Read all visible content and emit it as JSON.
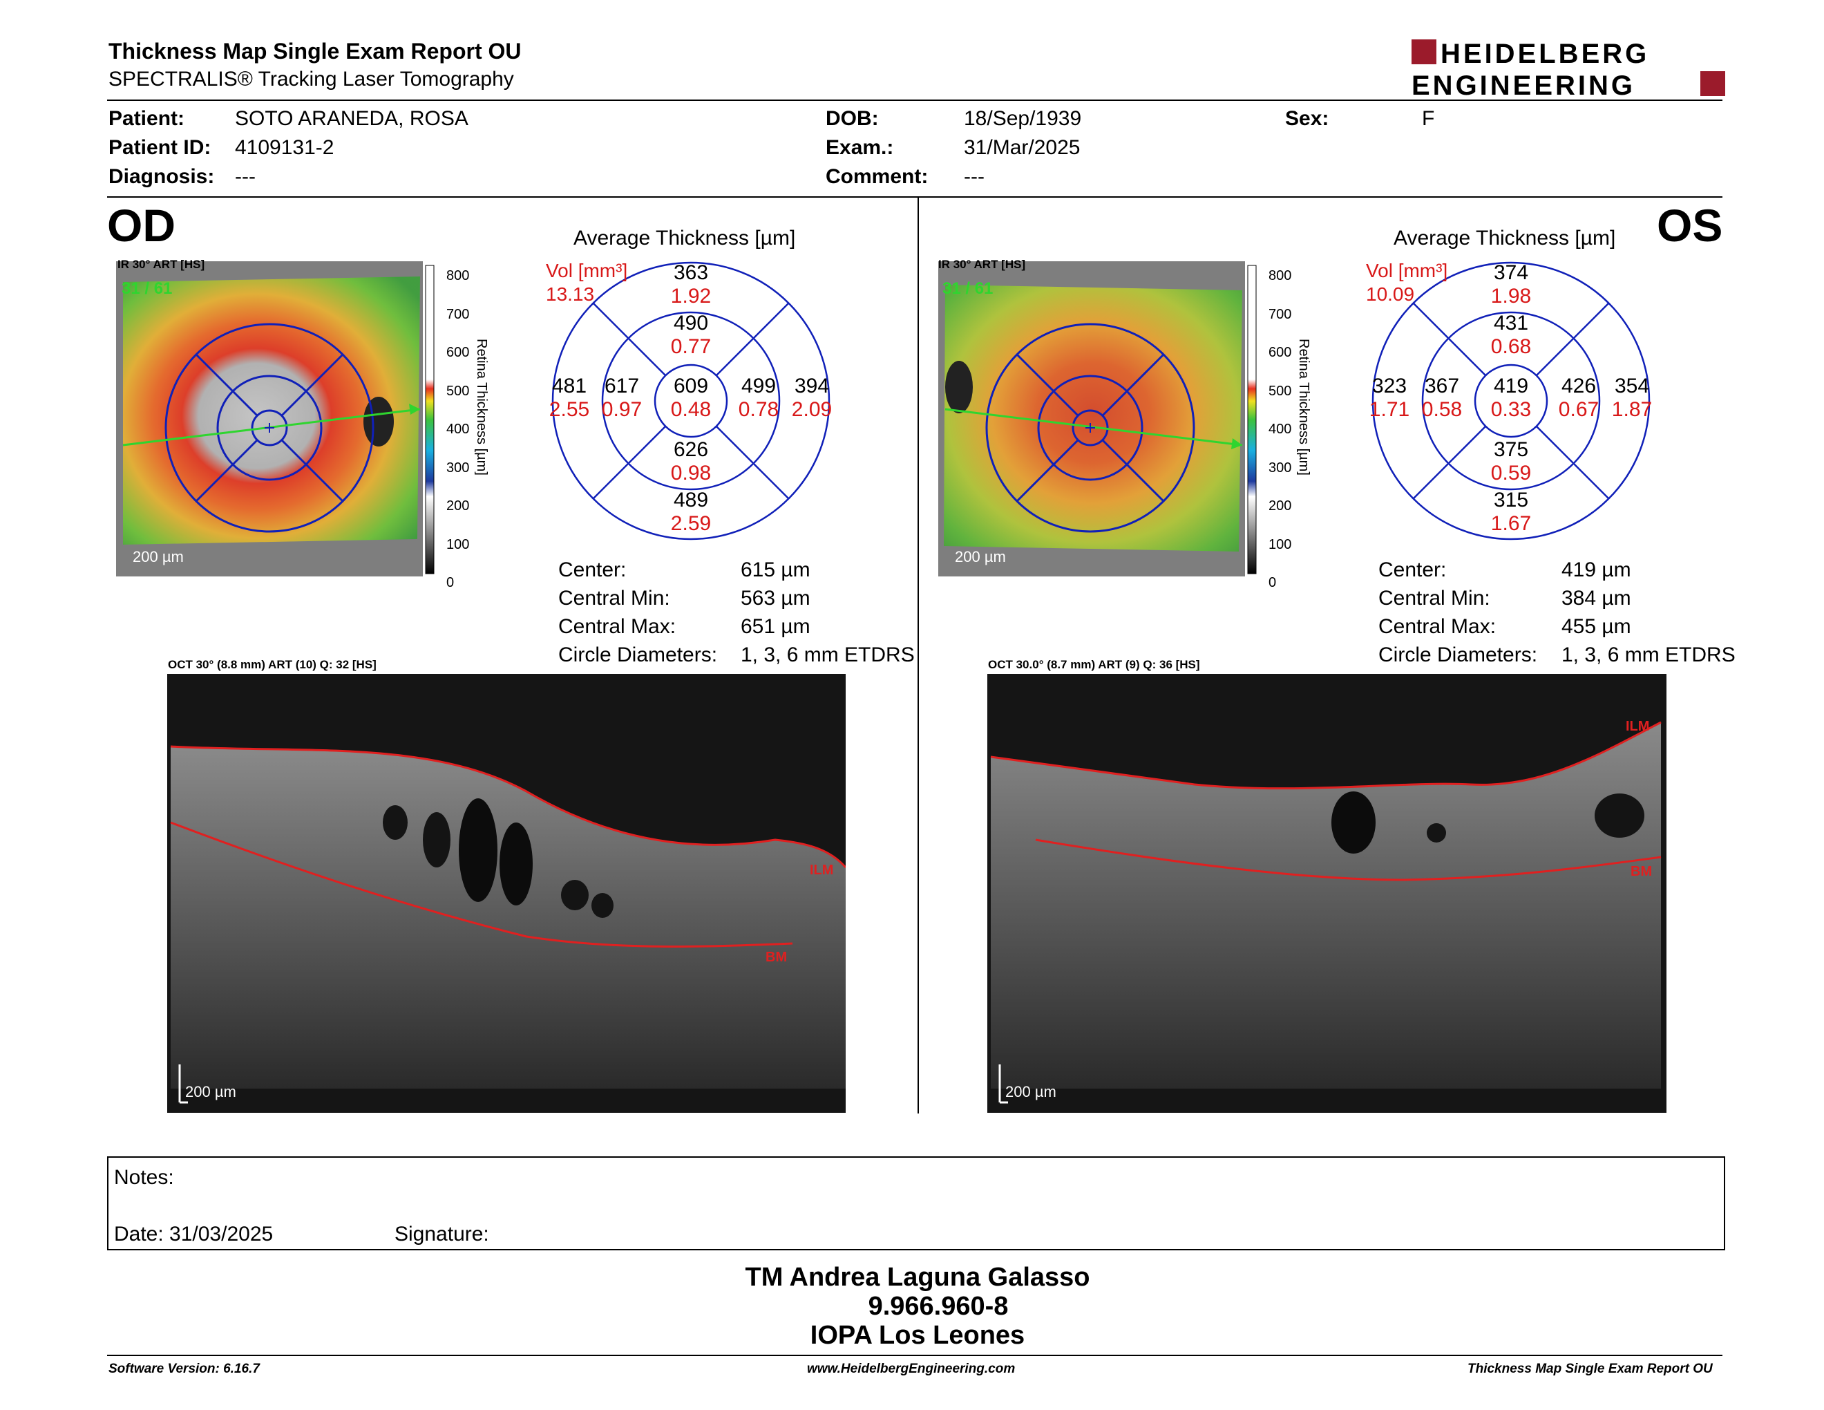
{
  "header": {
    "title": "Thickness Map Single Exam Report OU",
    "subtitle": "SPECTRALIS® Tracking Laser Tomography",
    "logo_line1": "HEIDELBERG",
    "logo_line2": "ENGINEERING",
    "brand_color": "#9b1b2b"
  },
  "patient": {
    "patient_label": "Patient:",
    "patient": "SOTO ARANEDA, ROSA",
    "id_label": "Patient ID:",
    "id": "4109131-2",
    "diagnosis_label": "Diagnosis:",
    "diagnosis": "---",
    "dob_label": "DOB:",
    "dob": "18/Sep/1939",
    "exam_label": "Exam.:",
    "exam": "31/Mar/2025",
    "comment_label": "Comment:",
    "comment": "---",
    "sex_label": "Sex:",
    "sex": "F"
  },
  "od": {
    "eye": "OD",
    "ir_label": "IR 30° ART [HS]",
    "frames": "31 / 61",
    "scale": "200 µm",
    "colorbar_title": "Retina Thickness [µm]",
    "colorbar_ticks": [
      "800",
      "700",
      "600",
      "500",
      "400",
      "300",
      "200",
      "100",
      "0"
    ],
    "avg_title": "Average Thickness [µm]",
    "vol_label": "Vol [mm³]",
    "vol_total": "13.13",
    "grid": {
      "center": {
        "t": "609",
        "v": "0.48"
      },
      "inner_sup": {
        "t": "490",
        "v": "0.77"
      },
      "inner_inf": {
        "t": "626",
        "v": "0.98"
      },
      "inner_left": {
        "t": "617",
        "v": "0.97"
      },
      "inner_right": {
        "t": "499",
        "v": "0.78"
      },
      "outer_sup": {
        "t": "363",
        "v": "1.92"
      },
      "outer_inf": {
        "t": "489",
        "v": "2.59"
      },
      "outer_left": {
        "t": "481",
        "v": "2.55"
      },
      "outer_right": {
        "t": "394",
        "v": "2.09"
      }
    },
    "stats": [
      {
        "label": "Center:",
        "value": "615 µm"
      },
      {
        "label": "Central Min:",
        "value": "563 µm"
      },
      {
        "label": "Central Max:",
        "value": "651 µm"
      },
      {
        "label": "Circle Diameters:",
        "value": "1, 3, 6 mm ETDRS"
      }
    ],
    "oct_label": "OCT 30° (8.8 mm) ART (10) Q: 32 [HS]",
    "ilm": "ILM",
    "bm": "BM",
    "oct_scale": "200 µm"
  },
  "os": {
    "eye": "OS",
    "ir_label": "IR 30° ART [HS]",
    "frames": "31 / 61",
    "scale": "200 µm",
    "colorbar_title": "Retina Thickness [µm]",
    "colorbar_ticks": [
      "800",
      "700",
      "600",
      "500",
      "400",
      "300",
      "200",
      "100",
      "0"
    ],
    "avg_title": "Average Thickness [µm]",
    "vol_label": "Vol [mm³]",
    "vol_total": "10.09",
    "grid": {
      "center": {
        "t": "419",
        "v": "0.33"
      },
      "inner_sup": {
        "t": "431",
        "v": "0.68"
      },
      "inner_inf": {
        "t": "375",
        "v": "0.59"
      },
      "inner_left": {
        "t": "367",
        "v": "0.58"
      },
      "inner_right": {
        "t": "426",
        "v": "0.67"
      },
      "outer_sup": {
        "t": "374",
        "v": "1.98"
      },
      "outer_inf": {
        "t": "315",
        "v": "1.67"
      },
      "outer_left": {
        "t": "323",
        "v": "1.71"
      },
      "outer_right": {
        "t": "354",
        "v": "1.87"
      }
    },
    "stats": [
      {
        "label": "Center:",
        "value": "419 µm"
      },
      {
        "label": "Central Min:",
        "value": "384 µm"
      },
      {
        "label": "Central Max:",
        "value": "455 µm"
      },
      {
        "label": "Circle Diameters:",
        "value": "1, 3, 6 mm ETDRS"
      }
    ],
    "oct_label": "OCT 30.0° (8.7 mm) ART (9) Q: 36 [HS]",
    "ilm": "ILM",
    "bm": "BM",
    "oct_scale": "200 µm"
  },
  "notes": {
    "notes_label": "Notes:",
    "date_label": "Date: 31/03/2025",
    "signature_label": "Signature:"
  },
  "signature": {
    "name": "TM Andrea Laguna Galasso",
    "id": "9.966.960-8",
    "institution": "IOPA Los Leones"
  },
  "footer": {
    "software": "Software Version: 6.16.7",
    "website": "www.HeidelbergEngineering.com",
    "report": "Thickness Map Single Exam Report OU"
  }
}
